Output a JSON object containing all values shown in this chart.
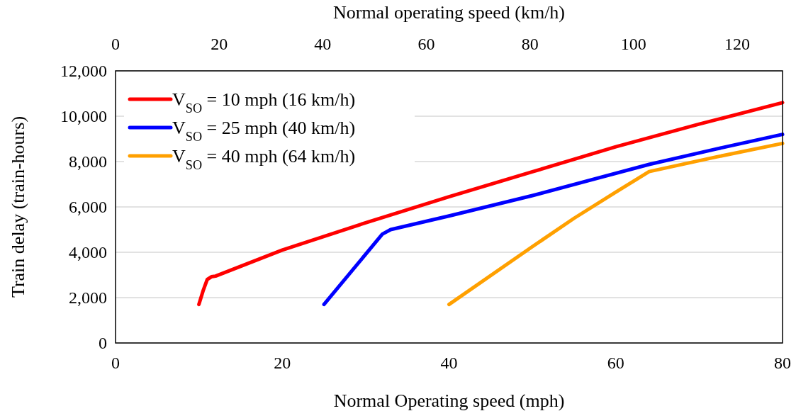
{
  "chart_data": {
    "type": "line",
    "xlabel": "Normal Operating speed (mph)",
    "ylabel": "Train delay (train-hours)",
    "x2label": "Normal operating speed (km/h)",
    "xlim": [
      0,
      80
    ],
    "xticks": [
      0,
      20,
      40,
      60,
      80
    ],
    "x2lim": [
      0,
      128.75
    ],
    "x2ticks": [
      0,
      20,
      40,
      60,
      80,
      100,
      120
    ],
    "ylim": [
      0,
      12000
    ],
    "yticks": [
      {
        "value": 0,
        "label": "0"
      },
      {
        "value": 2000,
        "label": "2,000"
      },
      {
        "value": 4000,
        "label": "4,000"
      },
      {
        "value": 6000,
        "label": "6,000"
      },
      {
        "value": 8000,
        "label": "8,000"
      },
      {
        "value": 10000,
        "label": "10,000"
      },
      {
        "value": 12000,
        "label": "12,000"
      }
    ],
    "grid": "y",
    "legend": "top left",
    "line_style": "solid",
    "marker": "none",
    "series": [
      {
        "name": "V$_{SO}$ = 10 mph (16 km/h)",
        "color": "#ff0000",
        "x": [
          10,
          10.5,
          11,
          11.5,
          12,
          20,
          30,
          40,
          50,
          60,
          70,
          80
        ],
        "values": [
          1700,
          2300,
          2800,
          2920,
          2950,
          4100,
          5300,
          6450,
          7550,
          8650,
          9650,
          10600
        ]
      },
      {
        "name": "V$_{SO}$ = 25 mph (40 km/h)",
        "color": "#0000ff",
        "x": [
          25,
          32,
          33,
          40,
          50,
          64,
          72,
          80
        ],
        "values": [
          1700,
          4800,
          5000,
          5600,
          6500,
          7875,
          8550,
          9200
        ]
      },
      {
        "name": "V$_{SO}$ = 40 mph (64 km/h)",
        "color": "#ffa000",
        "x": [
          40,
          50,
          55,
          60,
          64,
          72,
          80
        ],
        "values": [
          1700,
          4250,
          5500,
          6650,
          7560,
          8200,
          8800
        ]
      }
    ]
  }
}
